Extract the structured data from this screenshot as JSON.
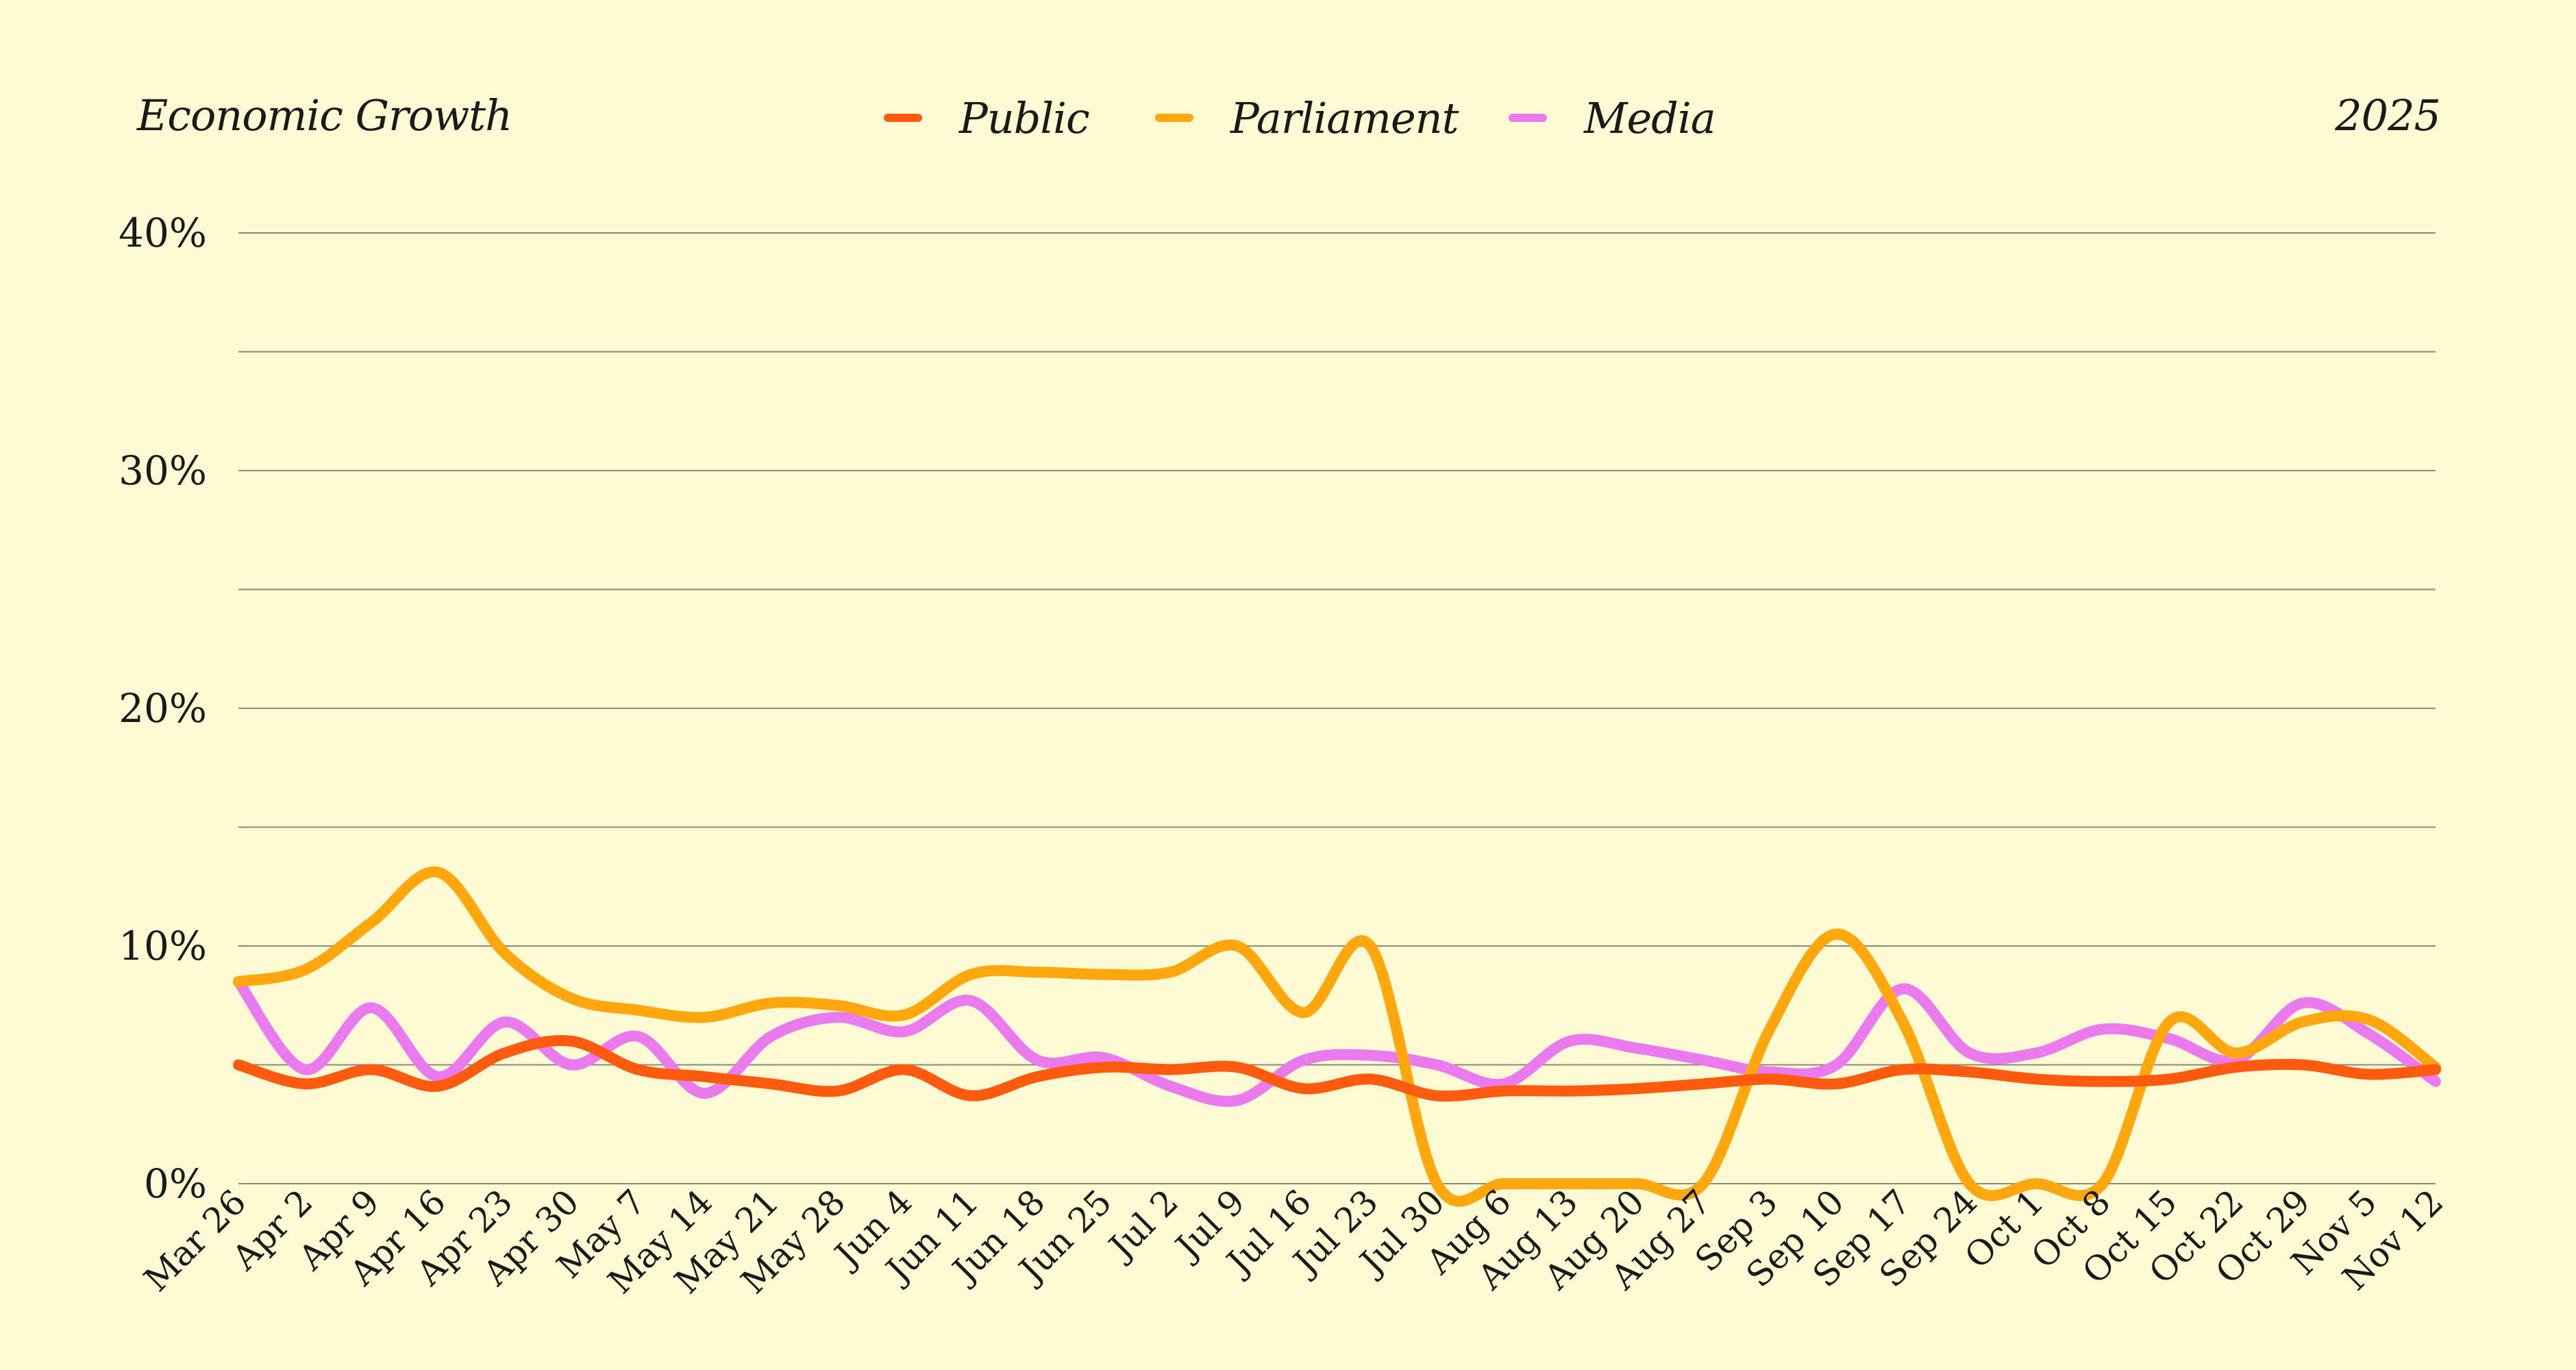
{
  "header": {
    "title": "Economic Growth",
    "year": "2025"
  },
  "legend": [
    {
      "label": "Public",
      "color": "#FF5A0E"
    },
    {
      "label": "Parliament",
      "color": "#FFA70C"
    },
    {
      "label": "Media",
      "color": "#EA7AEE"
    }
  ],
  "chart_data": {
    "type": "line",
    "title": "Economic Growth",
    "subtitle": "2025",
    "xlabel": "",
    "ylabel": "",
    "ylim": [
      0,
      40
    ],
    "yticks": [
      0,
      10,
      20,
      30,
      40
    ],
    "ytick_labels": [
      "0%",
      "10%",
      "20%",
      "30%",
      "40%"
    ],
    "grid": true,
    "legend_position": "top-center",
    "categories": [
      "Mar 26",
      "Apr 2",
      "Apr 9",
      "Apr 16",
      "Apr 23",
      "Apr 30",
      "May 7",
      "May 14",
      "May 21",
      "May 28",
      "Jun 4",
      "Jun 11",
      "Jun 18",
      "Jun 25",
      "Jul 2",
      "Jul 9",
      "Jul 16",
      "Jul 23",
      "Jul 30",
      "Aug 6",
      "Aug 13",
      "Aug 20",
      "Aug 27",
      "Sep 3",
      "Sep 10",
      "Sep 17",
      "Sep 24",
      "Oct 1",
      "Oct 8",
      "Oct 15",
      "Oct 22",
      "Oct 29",
      "Nov 5",
      "Nov 12"
    ],
    "series": [
      {
        "name": "Public",
        "color": "#FF5A0E",
        "values": [
          5.0,
          4.2,
          4.8,
          4.1,
          5.5,
          6.0,
          4.8,
          4.5,
          4.2,
          3.9,
          4.8,
          3.7,
          4.5,
          4.9,
          4.8,
          4.9,
          4.0,
          4.4,
          3.7,
          3.9,
          3.9,
          4.0,
          4.2,
          4.4,
          4.2,
          4.8,
          4.7,
          4.4,
          4.3,
          4.4,
          4.9,
          5.0,
          4.6,
          4.8
        ]
      },
      {
        "name": "Parliament",
        "color": "#FFA70C",
        "values": [
          8.5,
          9.0,
          11.0,
          13.1,
          9.7,
          7.8,
          7.3,
          7.0,
          7.6,
          7.5,
          7.1,
          8.8,
          8.9,
          8.8,
          8.9,
          10.0,
          7.2,
          10.0,
          0.0,
          0.0,
          0.0,
          0.0,
          0.0,
          6.5,
          10.5,
          6.8,
          0.0,
          0.0,
          0.0,
          6.8,
          5.5,
          6.8,
          6.9,
          4.9
        ]
      },
      {
        "name": "Media",
        "color": "#EA7AEE",
        "values": [
          8.5,
          4.8,
          7.4,
          4.5,
          6.8,
          5.0,
          6.2,
          3.8,
          6.2,
          7.0,
          6.4,
          7.7,
          5.2,
          5.3,
          4.1,
          3.5,
          5.2,
          5.4,
          5.0,
          4.2,
          6.0,
          5.7,
          5.2,
          4.7,
          5.0,
          8.2,
          5.5,
          5.5,
          6.5,
          6.1,
          5.2,
          7.6,
          6.3,
          4.3
        ]
      }
    ]
  }
}
